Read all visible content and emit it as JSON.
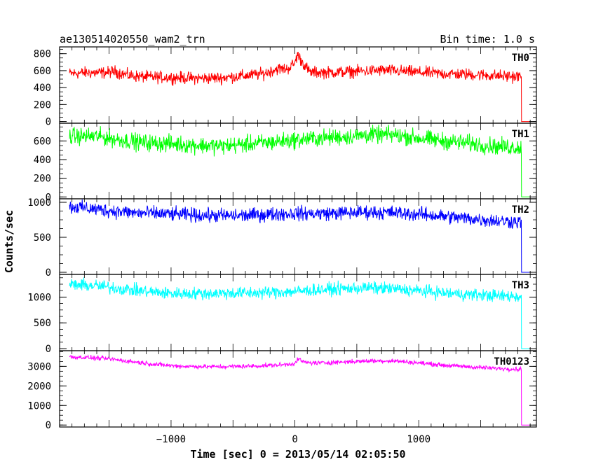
{
  "header": {
    "title": "ae130514020550_wam2_trn",
    "bin_time": "Bin time: 1.0 s"
  },
  "chart_data": {
    "type": "line",
    "title": "ae130514020550_wam2_trn",
    "subtitle": "Bin time: 1.0 s",
    "xlabel": "Time [sec] 0 = 2013/05/14 02:05:50",
    "ylabel": "Counts/sec",
    "xlim": [
      -1900,
      1950
    ],
    "x_ticks": [
      -1000,
      0,
      1000
    ],
    "x_tick_labels": [
      "−1000",
      "0",
      "1000"
    ],
    "data_end_time": 1830,
    "colors": {
      "TH0": "#ff0000",
      "TH1": "#00ff00",
      "TH2": "#0000ff",
      "TH3": "#00ffff",
      "TH0123": "#ff00ff"
    },
    "panels": [
      {
        "label": "TH0",
        "ylim": [
          -20,
          880
        ],
        "yticks": [
          0,
          200,
          400,
          600,
          800
        ],
        "noise": 35,
        "points": [
          [
            -1820,
            565
          ],
          [
            -1700,
            575
          ],
          [
            -1550,
            575
          ],
          [
            -1450,
            590
          ],
          [
            -1350,
            545
          ],
          [
            -1200,
            525
          ],
          [
            -1000,
            520
          ],
          [
            -800,
            510
          ],
          [
            -600,
            515
          ],
          [
            -400,
            540
          ],
          [
            -250,
            565
          ],
          [
            -150,
            620
          ],
          [
            -60,
            620
          ],
          [
            0,
            690
          ],
          [
            20,
            790
          ],
          [
            60,
            700
          ],
          [
            120,
            580
          ],
          [
            300,
            580
          ],
          [
            500,
            590
          ],
          [
            700,
            605
          ],
          [
            900,
            590
          ],
          [
            1100,
            570
          ],
          [
            1300,
            560
          ],
          [
            1500,
            550
          ],
          [
            1700,
            535
          ],
          [
            1810,
            530
          ]
        ]
      },
      {
        "label": "TH1",
        "ylim": [
          -20,
          790
        ],
        "yticks": [
          0,
          200,
          400,
          600
        ],
        "noise": 45,
        "points": [
          [
            -1820,
            650
          ],
          [
            -1600,
            650
          ],
          [
            -1400,
            610
          ],
          [
            -1200,
            580
          ],
          [
            -1000,
            570
          ],
          [
            -800,
            555
          ],
          [
            -600,
            545
          ],
          [
            -400,
            565
          ],
          [
            -200,
            585
          ],
          [
            0,
            610
          ],
          [
            200,
            630
          ],
          [
            400,
            645
          ],
          [
            600,
            665
          ],
          [
            800,
            665
          ],
          [
            1000,
            630
          ],
          [
            1200,
            600
          ],
          [
            1400,
            575
          ],
          [
            1600,
            545
          ],
          [
            1810,
            530
          ]
        ]
      },
      {
        "label": "TH2",
        "ylim": [
          -30,
          1050
        ],
        "yticks": [
          0,
          500,
          1000
        ],
        "noise": 50,
        "points": [
          [
            -1820,
            940
          ],
          [
            -1700,
            920
          ],
          [
            -1500,
            880
          ],
          [
            -1300,
            850
          ],
          [
            -1000,
            830
          ],
          [
            -700,
            810
          ],
          [
            -400,
            810
          ],
          [
            -200,
            830
          ],
          [
            0,
            840
          ],
          [
            200,
            840
          ],
          [
            400,
            850
          ],
          [
            600,
            860
          ],
          [
            800,
            850
          ],
          [
            1000,
            830
          ],
          [
            1200,
            800
          ],
          [
            1400,
            770
          ],
          [
            1600,
            740
          ],
          [
            1810,
            720
          ]
        ]
      },
      {
        "label": "TH3",
        "ylim": [
          -40,
          1440
        ],
        "yticks": [
          0,
          500,
          1000
        ],
        "noise": 60,
        "points": [
          [
            -1820,
            1240
          ],
          [
            -1600,
            1220
          ],
          [
            -1400,
            1160
          ],
          [
            -1200,
            1110
          ],
          [
            -1000,
            1070
          ],
          [
            -800,
            1070
          ],
          [
            -600,
            1075
          ],
          [
            -400,
            1080
          ],
          [
            -200,
            1090
          ],
          [
            0,
            1110
          ],
          [
            200,
            1140
          ],
          [
            400,
            1165
          ],
          [
            600,
            1180
          ],
          [
            800,
            1160
          ],
          [
            1000,
            1120
          ],
          [
            1200,
            1080
          ],
          [
            1400,
            1050
          ],
          [
            1600,
            1030
          ],
          [
            1810,
            1010
          ]
        ]
      },
      {
        "label": "TH0123",
        "ylim": [
          -100,
          3800
        ],
        "yticks": [
          0,
          1000,
          2000,
          3000
        ],
        "noise": 55,
        "points": [
          [
            -1820,
            3480
          ],
          [
            -1700,
            3460
          ],
          [
            -1500,
            3380
          ],
          [
            -1300,
            3230
          ],
          [
            -1100,
            3080
          ],
          [
            -900,
            3000
          ],
          [
            -600,
            2980
          ],
          [
            -300,
            3020
          ],
          [
            -100,
            3080
          ],
          [
            0,
            3150
          ],
          [
            30,
            3370
          ],
          [
            80,
            3200
          ],
          [
            200,
            3170
          ],
          [
            400,
            3230
          ],
          [
            600,
            3280
          ],
          [
            800,
            3280
          ],
          [
            1000,
            3180
          ],
          [
            1200,
            3060
          ],
          [
            1400,
            2980
          ],
          [
            1600,
            2900
          ],
          [
            1810,
            2860
          ]
        ]
      }
    ]
  }
}
